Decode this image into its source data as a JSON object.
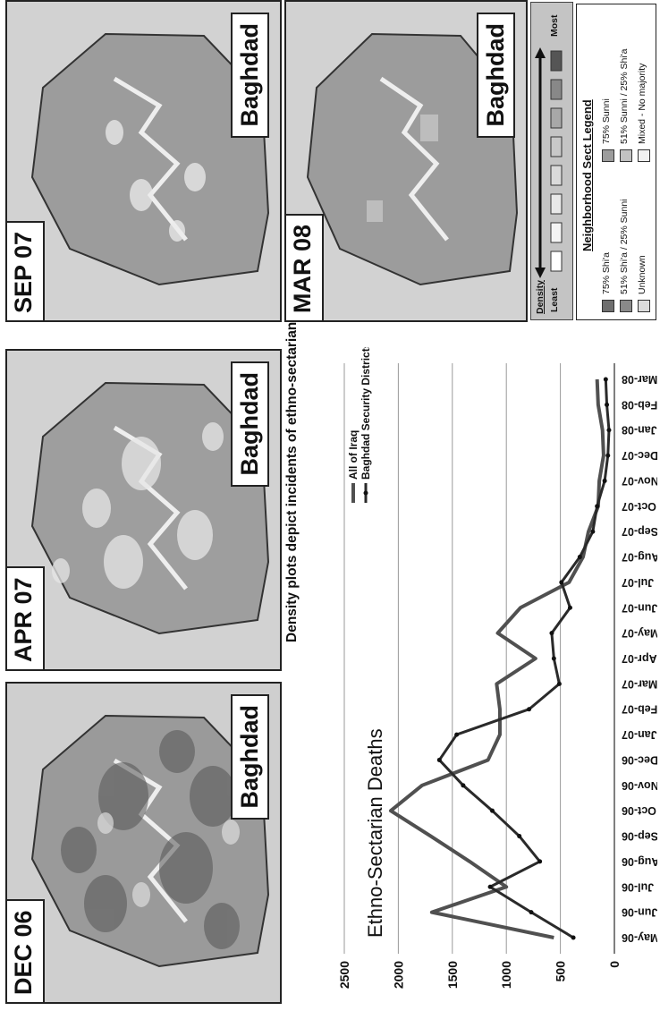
{
  "maps": [
    {
      "date_label": "DEC 06",
      "city_label": "Baghdad"
    },
    {
      "date_label": "APR 07",
      "city_label": "Baghdad"
    },
    {
      "date_label": "SEP 07",
      "city_label": "Baghdad"
    },
    {
      "date_label": "MAR 08",
      "city_label": "Baghdad"
    }
  ],
  "caption": "Density plots depict incidents of ethno-sectarian deaths.",
  "density_scale": {
    "title": "Density",
    "least_label": "Least",
    "most_label": "Most"
  },
  "sect_legend": {
    "title": "Neighborhood Sect Legend",
    "items": [
      {
        "label": "75% Shi'a",
        "color": "#6e6e6e"
      },
      {
        "label": "75% Sunni",
        "color": "#9c9c9c"
      },
      {
        "label": "51% Shi'a / 25% Sunni",
        "color": "#8a8a8a"
      },
      {
        "label": "51% Sunni / 25% Shi'a",
        "color": "#c2c2c2"
      },
      {
        "label": "Unknown",
        "color": "#dcdcdc"
      },
      {
        "label": "Mixed - No majority",
        "color": "#f2f2f2"
      }
    ]
  },
  "chart_data": {
    "type": "line",
    "title": "Ethno-Sectarian Deaths",
    "categories": [
      "May-06",
      "Jun-06",
      "Jul-06",
      "Aug-06",
      "Sep-06",
      "Oct-06",
      "Nov-06",
      "Dec-06",
      "Jan-07",
      "Feb-07",
      "Mar-07",
      "Apr-07",
      "May-07",
      "Jun-07",
      "Jul-07",
      "Aug-07",
      "Sep-07",
      "Oct-07",
      "Nov-07",
      "Dec-07",
      "Jan-08",
      "Feb-08",
      "Mar-08"
    ],
    "series": [
      {
        "name": "All of Iraq",
        "values": [
          560,
          1690,
          1000,
          1340,
          1700,
          2070,
          1780,
          1170,
          1060,
          1060,
          1090,
          730,
          1080,
          870,
          420,
          290,
          240,
          150,
          140,
          100,
          110,
          150,
          160
        ]
      },
      {
        "name": "Baghdad Security Districts",
        "values": [
          380,
          770,
          1150,
          690,
          880,
          1130,
          1400,
          1620,
          1460,
          790,
          510,
          560,
          580,
          410,
          490,
          320,
          200,
          160,
          90,
          60,
          50,
          70,
          80
        ]
      }
    ],
    "ylim": [
      0,
      2500
    ],
    "yticks": [
      0,
      500,
      1000,
      1500,
      2000,
      2500
    ],
    "grid": true,
    "legend_position": "top-right"
  }
}
